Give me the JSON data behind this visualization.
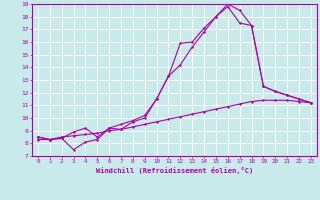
{
  "xlabel": "Windchill (Refroidissement éolien,°C)",
  "ylabel": "",
  "xlim": [
    -0.5,
    23.5
  ],
  "ylim": [
    7,
    19
  ],
  "xticks": [
    0,
    1,
    2,
    3,
    4,
    5,
    6,
    7,
    8,
    9,
    10,
    11,
    12,
    13,
    14,
    15,
    16,
    17,
    18,
    19,
    20,
    21,
    22,
    23
  ],
  "yticks": [
    7,
    8,
    9,
    10,
    11,
    12,
    13,
    14,
    15,
    16,
    17,
    18,
    19
  ],
  "bg_color": "#c8eaea",
  "line_color": "#aa00aa",
  "grid_color": "#ffffff",
  "line1_x": [
    0,
    1,
    2,
    3,
    4,
    5,
    6,
    7,
    8,
    9,
    10,
    11,
    12,
    13,
    14,
    15,
    16,
    17,
    18,
    19,
    20,
    21,
    22,
    23
  ],
  "line1_y": [
    8.5,
    8.3,
    8.4,
    7.5,
    8.1,
    8.3,
    9.2,
    9.1,
    9.7,
    10.0,
    11.5,
    13.3,
    15.9,
    16.0,
    17.1,
    18.0,
    19.0,
    18.5,
    17.3,
    12.5,
    12.1,
    11.8,
    11.5,
    11.2
  ],
  "line2_x": [
    0,
    1,
    2,
    3,
    4,
    5,
    6,
    7,
    8,
    9,
    10,
    11,
    12,
    13,
    14,
    15,
    16,
    17,
    18,
    19,
    20,
    21,
    22,
    23
  ],
  "line2_y": [
    8.5,
    8.3,
    8.4,
    8.9,
    9.2,
    8.5,
    9.2,
    9.5,
    9.8,
    10.2,
    11.5,
    13.3,
    14.2,
    15.6,
    16.8,
    18.0,
    18.8,
    17.5,
    17.3,
    12.5,
    12.1,
    11.8,
    11.5,
    11.2
  ],
  "line3_x": [
    0,
    1,
    2,
    3,
    4,
    5,
    6,
    7,
    8,
    9,
    10,
    11,
    12,
    13,
    14,
    15,
    16,
    17,
    18,
    19,
    20,
    21,
    22,
    23
  ],
  "line3_y": [
    8.3,
    8.3,
    8.5,
    8.6,
    8.7,
    8.8,
    9.0,
    9.1,
    9.3,
    9.5,
    9.7,
    9.9,
    10.1,
    10.3,
    10.5,
    10.7,
    10.9,
    11.1,
    11.3,
    11.4,
    11.4,
    11.4,
    11.3,
    11.2
  ]
}
